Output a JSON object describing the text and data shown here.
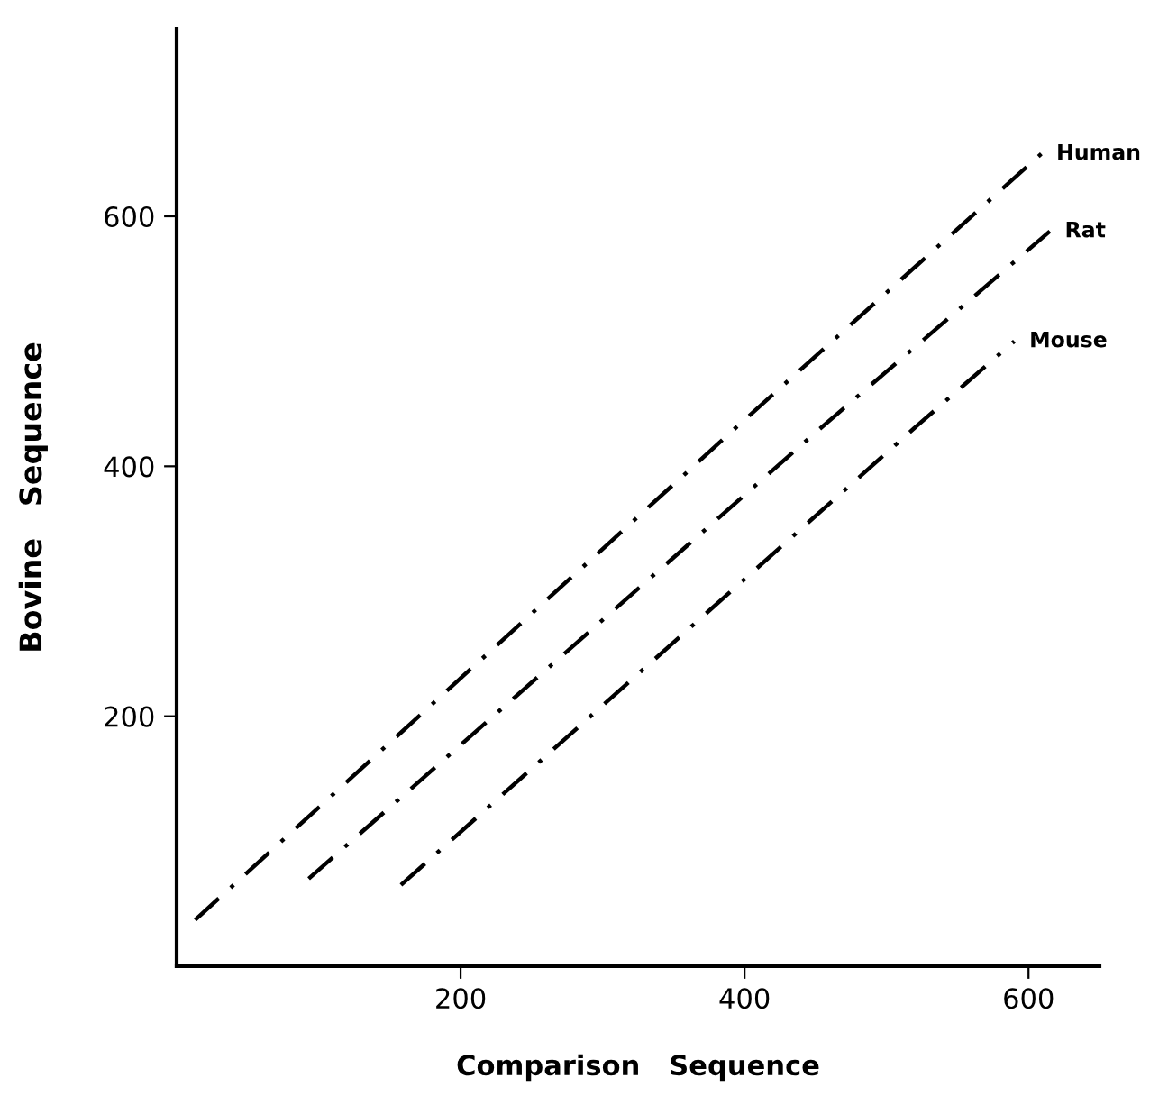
{
  "chart_data": {
    "type": "line",
    "xlabel": "Comparison   Sequence",
    "ylabel": "Bovine   Sequence",
    "xlim": [
      0,
      650
    ],
    "ylim": [
      0,
      750
    ],
    "xticks": [
      200,
      400,
      600
    ],
    "yticks": [
      200,
      400,
      600
    ],
    "grid": false,
    "legend": false,
    "line_style": "dashed",
    "marker": "none",
    "series": [
      {
        "name": "Human",
        "color": "#000000",
        "x": [
          13,
          393,
          609
        ],
        "values": [
          37,
          430,
          650
        ]
      },
      {
        "name": "Rat",
        "color": "#000000",
        "x": [
          93,
          450,
          615
        ],
        "values": [
          70,
          427,
          588
        ]
      },
      {
        "name": "Mouse",
        "color": "#000000",
        "x": [
          158,
          519,
          590
        ],
        "values": [
          65,
          430,
          500
        ]
      }
    ]
  }
}
